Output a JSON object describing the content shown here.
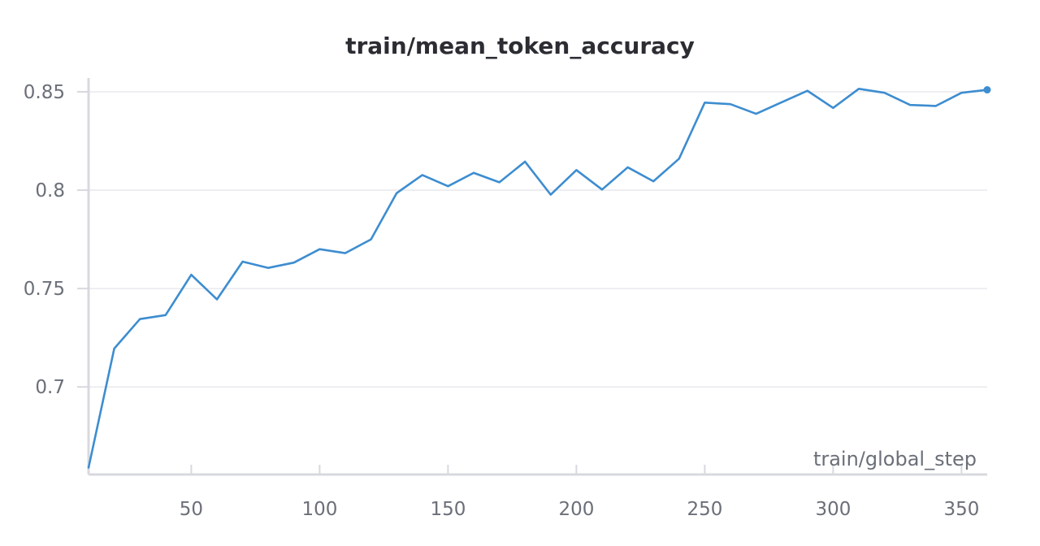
{
  "chart_data": {
    "type": "line",
    "title": "train/mean_token_accuracy",
    "xlabel": "train/global_step",
    "ylabel": "",
    "xlim": [
      10,
      360
    ],
    "ylim": [
      0.6555,
      0.857
    ],
    "xticks": [
      50,
      100,
      150,
      200,
      250,
      300,
      350
    ],
    "yticks": [
      0.7,
      0.75,
      0.8,
      0.85
    ],
    "ytick_labels": [
      "0.7",
      "0.75",
      "0.8",
      "0.85"
    ],
    "grid": true,
    "legend": "none",
    "colors": {
      "line": "#3d8dd0",
      "grid": "#e8e9ed",
      "axis": "#d7d9de",
      "tick_text": "#6b6f78",
      "title": "#2b2d33"
    },
    "series": [
      {
        "x": [
          10,
          20,
          30,
          40,
          50,
          60,
          70,
          80,
          90,
          100,
          110,
          120,
          130,
          140,
          150,
          160,
          170,
          180,
          190,
          200,
          210,
          220,
          230,
          240,
          250,
          260,
          270,
          280,
          290,
          300,
          310,
          320,
          330,
          340,
          350,
          360
        ],
        "values": [
          0.659,
          0.7195,
          0.7345,
          0.7365,
          0.757,
          0.7445,
          0.7637,
          0.7605,
          0.7632,
          0.77,
          0.768,
          0.775,
          0.7985,
          0.8077,
          0.802,
          0.8088,
          0.804,
          0.8145,
          0.7977,
          0.8102,
          0.8003,
          0.8116,
          0.8045,
          0.816,
          0.8445,
          0.8437,
          0.8388,
          0.8447,
          0.8505,
          0.8418,
          0.8515,
          0.8495,
          0.8433,
          0.8428,
          0.8495,
          0.851
        ]
      }
    ]
  }
}
